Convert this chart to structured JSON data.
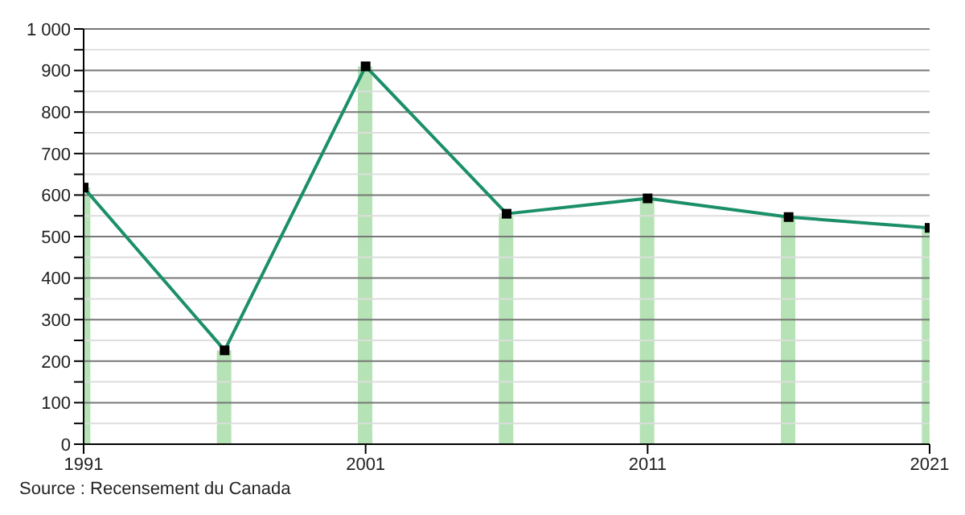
{
  "chart_data": {
    "type": "line",
    "x": [
      1991,
      1996,
      2001,
      2006,
      2011,
      2016,
      2021
    ],
    "series": [
      {
        "type": "bar",
        "color": "#b5e3b5",
        "values": [
          618,
          226,
          910,
          555,
          592,
          547,
          521
        ]
      },
      {
        "color": "#1a8f6a",
        "values": [
          618,
          226,
          910,
          555,
          592,
          547,
          521
        ]
      }
    ],
    "xlim": [
      1991,
      2021
    ],
    "xticks": [
      1991,
      2001,
      2011,
      2021
    ],
    "ylim": [
      0,
      1000
    ],
    "yticks": [
      0,
      {
        "value": 50,
        "label": null
      },
      100,
      {
        "value": 150,
        "label": null
      },
      200,
      {
        "value": 250,
        "label": null
      },
      300,
      {
        "value": 350,
        "label": null
      },
      400,
      {
        "value": 450,
        "label": null
      },
      500,
      {
        "value": 550,
        "label": null
      },
      600,
      {
        "value": 650,
        "label": null
      },
      700,
      {
        "value": 750,
        "label": null
      },
      800,
      {
        "value": 850,
        "label": null
      },
      900,
      {
        "value": 950,
        "label": null
      },
      {
        "value": 1000,
        "label": "1 000"
      }
    ],
    "grid": "y",
    "marker": "square",
    "annotations": [
      "Source : Recensement du Canada"
    ]
  }
}
